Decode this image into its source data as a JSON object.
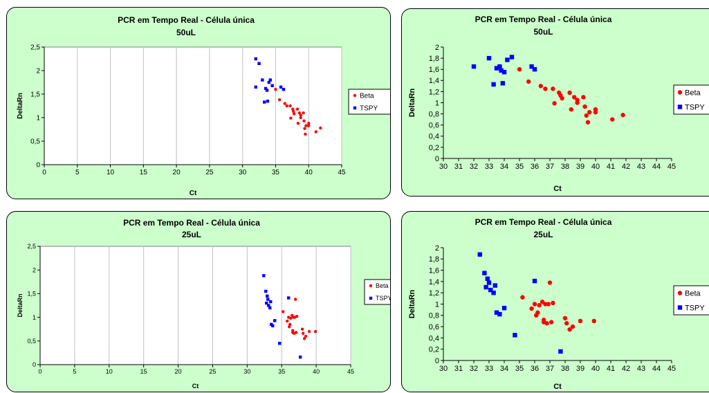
{
  "chart_data": [
    {
      "type": "scatter",
      "title": "PCR em Tempo Real - Célula única",
      "subtitle": "50uL",
      "xlabel": "Ct",
      "ylabel": "DeltaRn",
      "xlim": [
        0,
        45
      ],
      "ylim": [
        0,
        2.5
      ],
      "xticks": [
        "0",
        "5",
        "10",
        "15",
        "20",
        "25",
        "30",
        "35",
        "40",
        "45"
      ],
      "yticks": [
        "0",
        "0,5",
        "1",
        "1,5",
        "2",
        "2,5"
      ],
      "grid": "vertical",
      "legend": "right",
      "plot_background": "#ffffff",
      "series": [
        {
          "name": "Beta",
          "color": "#ff0000",
          "marker": "circle",
          "x": [
            35,
            35.6,
            36.4,
            36.7,
            37.2,
            37.3,
            37.6,
            37.7,
            37.8,
            38.3,
            38.4,
            38.6,
            38.8,
            38.8,
            39.2,
            39.3,
            39.4,
            39.5,
            39.6,
            40.0,
            40.0,
            41.1,
            41.8
          ],
          "y": [
            1.6,
            1.38,
            1.3,
            1.25,
            1.25,
            0.99,
            1.18,
            1.13,
            1.08,
            1.18,
            0.88,
            1.1,
            1.0,
            1.05,
            1.1,
            0.93,
            0.77,
            0.65,
            0.83,
            0.88,
            0.83,
            0.7,
            0.78
          ]
        },
        {
          "name": "TSPY",
          "color": "#0000ff",
          "marker": "square",
          "x": [
            32,
            32.0,
            32.5,
            33,
            33.3,
            33.5,
            33.7,
            33.8,
            34,
            34.2,
            34.5,
            35.8,
            36.2
          ],
          "y": [
            2.25,
            1.65,
            2.15,
            1.8,
            1.33,
            1.62,
            1.58,
            1.35,
            1.75,
            1.8,
            1.68,
            1.65,
            1.6
          ]
        }
      ]
    },
    {
      "type": "scatter",
      "title": "PCR em Tempo Real - Célula única",
      "subtitle": "50uL",
      "xlabel": "Ct",
      "ylabel": "DeltaRn",
      "xlim": [
        30,
        45
      ],
      "ylim": [
        0,
        2
      ],
      "xticks": [
        "30",
        "31",
        "32",
        "33",
        "34",
        "35",
        "36",
        "37",
        "38",
        "39",
        "40",
        "41",
        "42",
        "43",
        "44",
        "45"
      ],
      "yticks": [
        "0",
        "0,2",
        "0,4",
        "0,6",
        "0,8",
        "1",
        "1,2",
        "1,4",
        "1,6",
        "1,8",
        "2"
      ],
      "grid": "none",
      "legend": "right",
      "plot_background": "#ccffcc",
      "series": [
        {
          "name": "Beta",
          "color": "#ff0000",
          "marker": "circle",
          "x": [
            35,
            35.6,
            36.4,
            36.7,
            37.2,
            37.3,
            37.6,
            37.7,
            37.8,
            38.3,
            38.4,
            38.6,
            38.8,
            38.8,
            39.2,
            39.3,
            39.4,
            39.5,
            39.6,
            40.0,
            40.0,
            41.1,
            41.8
          ],
          "y": [
            1.6,
            1.38,
            1.3,
            1.25,
            1.25,
            0.99,
            1.18,
            1.13,
            1.08,
            1.18,
            0.88,
            1.1,
            1.0,
            1.05,
            1.1,
            0.93,
            0.77,
            0.65,
            0.83,
            0.88,
            0.83,
            0.7,
            0.78
          ]
        },
        {
          "name": "TSPY",
          "color": "#0000ff",
          "marker": "square",
          "x": [
            32,
            33,
            33.3,
            33.5,
            33.7,
            33.8,
            33.9,
            34,
            34.2,
            34.5,
            35.8,
            36.0
          ],
          "y": [
            1.65,
            1.8,
            1.33,
            1.62,
            1.65,
            1.58,
            1.35,
            1.55,
            1.77,
            1.82,
            1.65,
            1.6
          ]
        }
      ]
    },
    {
      "type": "scatter",
      "title": "PCR em Tempo Real - Célula única",
      "subtitle": "25uL",
      "xlabel": "Ct",
      "ylabel": "DeltaRn",
      "xlim": [
        0,
        45
      ],
      "ylim": [
        0,
        2.5
      ],
      "xticks": [
        "0",
        "5",
        "10",
        "15",
        "20",
        "25",
        "30",
        "35",
        "40",
        "45"
      ],
      "yticks": [
        "0",
        "0,5",
        "1",
        "1,5",
        "2",
        "2,5"
      ],
      "grid": "vertical",
      "legend": "right",
      "plot_background": "#ffffff",
      "series": [
        {
          "name": "Beta",
          "color": "#ff0000",
          "marker": "circle",
          "x": [
            35.2,
            35.8,
            36.0,
            36.1,
            36.2,
            36.3,
            36.5,
            36.6,
            36.6,
            36.7,
            36.8,
            36.9,
            37.0,
            37.1,
            37.2,
            38.0,
            38.1,
            38.3,
            38.5,
            39.0,
            39.9
          ],
          "y": [
            1.12,
            0.92,
            1.0,
            0.8,
            0.85,
            0.98,
            1.04,
            0.72,
            0.68,
            1.0,
            0.66,
            1.0,
            1.38,
            0.68,
            1.02,
            0.75,
            0.66,
            0.55,
            0.6,
            0.7,
            0.7
          ],
          "colors": "#ff0000"
        },
        {
          "name": "TSPY",
          "color": "#0000ff",
          "marker": "square",
          "x": [
            32.4,
            32.7,
            32.8,
            32.9,
            33.0,
            33.1,
            33.3,
            33.4,
            33.5,
            33.7,
            34.0,
            34.7,
            36.0,
            37.7
          ],
          "y": [
            1.88,
            1.55,
            1.3,
            1.45,
            1.38,
            1.25,
            1.2,
            1.33,
            0.85,
            0.82,
            0.93,
            0.45,
            1.41,
            0.16
          ]
        }
      ]
    },
    {
      "type": "scatter",
      "title": "PCR em Tempo Real - Célula única",
      "subtitle": "25uL",
      "xlabel": "Ct",
      "ylabel": "DeltaRn",
      "xlim": [
        30,
        45
      ],
      "ylim": [
        0,
        2
      ],
      "xticks": [
        "30",
        "31",
        "32",
        "33",
        "34",
        "35",
        "36",
        "37",
        "38",
        "39",
        "40",
        "41",
        "42",
        "43",
        "44",
        "45"
      ],
      "yticks": [
        "0",
        "0,2",
        "0,4",
        "0,6",
        "0,8",
        "1",
        "1,2",
        "1,4",
        "1,6",
        "1,8",
        "2"
      ],
      "grid": "none",
      "legend": "right",
      "plot_background": "#ccffcc",
      "series": [
        {
          "name": "Beta",
          "color": "#ff0000",
          "marker": "circle",
          "x": [
            35.2,
            35.8,
            36.0,
            36.1,
            36.2,
            36.3,
            36.5,
            36.6,
            36.6,
            36.7,
            36.8,
            36.9,
            37.0,
            37.1,
            37.2,
            38.0,
            38.1,
            38.3,
            38.5,
            39.0,
            39.9
          ],
          "y": [
            1.12,
            0.92,
            1.0,
            0.8,
            0.85,
            0.98,
            1.04,
            0.72,
            0.68,
            1.0,
            0.66,
            1.0,
            1.38,
            0.68,
            1.02,
            0.75,
            0.66,
            0.55,
            0.6,
            0.7,
            0.7
          ]
        },
        {
          "name": "TSPY",
          "color": "#0000ff",
          "marker": "square",
          "x": [
            32.4,
            32.7,
            32.8,
            32.9,
            33.0,
            33.1,
            33.3,
            33.4,
            33.5,
            33.7,
            34.0,
            34.7,
            36.0,
            37.7
          ],
          "y": [
            1.88,
            1.55,
            1.3,
            1.45,
            1.38,
            1.25,
            1.2,
            1.33,
            0.85,
            0.82,
            0.93,
            0.45,
            1.41,
            0.16
          ]
        }
      ]
    }
  ]
}
